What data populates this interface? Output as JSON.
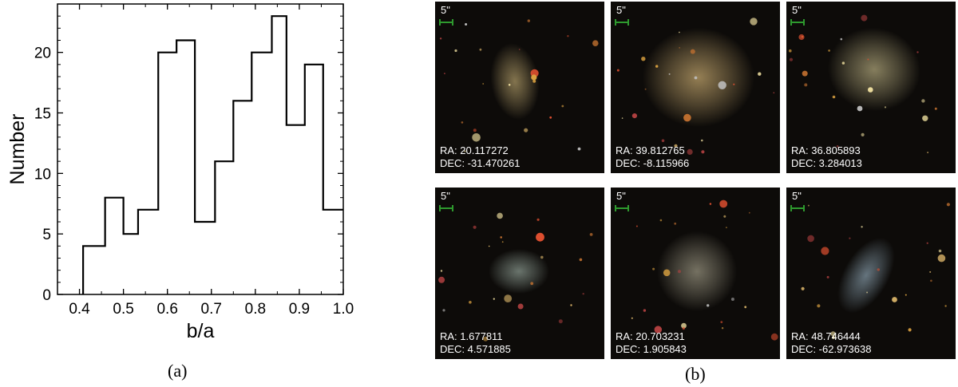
{
  "chart_data": {
    "type": "bar",
    "style": "step-histogram",
    "xlabel": "b/a",
    "ylabel": "Number",
    "xlim": [
      0.35,
      1.0
    ],
    "ylim": [
      0,
      24
    ],
    "xticks": [
      "0.4",
      "0.5",
      "0.6",
      "0.7",
      "0.8",
      "0.9",
      "1.0"
    ],
    "yticks": [
      "0",
      "5",
      "10",
      "15",
      "20"
    ],
    "bin_edges": [
      0.4083,
      0.4583,
      0.5,
      0.5333,
      0.5792,
      0.6208,
      0.6625,
      0.7083,
      0.75,
      0.7917,
      0.8375,
      0.8708,
      0.9125,
      0.9542,
      1.0
    ],
    "values": [
      4,
      8,
      5,
      7,
      20,
      21,
      6,
      11,
      16,
      20,
      23,
      14,
      19,
      7
    ],
    "grid": false
  },
  "captions": {
    "a": "(a)",
    "b": "(b)"
  },
  "galaxies": [
    {
      "scale": "5\"",
      "ra": "RA: 20.117272",
      "dec": "DEC: -31.470261",
      "glow": "#8a7a52"
    },
    {
      "scale": "5\"",
      "ra": "RA: 39.812765",
      "dec": "DEC: -8.115966",
      "glow": "#9c8558"
    },
    {
      "scale": "5\"",
      "ra": "RA: 36.805893",
      "dec": "DEC: 3.284013",
      "glow": "#8c8462"
    },
    {
      "scale": "5\"",
      "ra": "RA: 1.677811",
      "dec": "DEC: 4.571885",
      "glow": "#6f7a72"
    },
    {
      "scale": "5\"",
      "ra": "RA: 20.703231",
      "dec": "DEC: 1.905843",
      "glow": "#7a7666"
    },
    {
      "scale": "5\"",
      "ra": "RA: 48.746444",
      "dec": "DEC: -62.973638",
      "glow": "#6a7a84"
    }
  ],
  "colors": {
    "scalebar": "#2e9a2e",
    "background": "#0d0b09"
  }
}
